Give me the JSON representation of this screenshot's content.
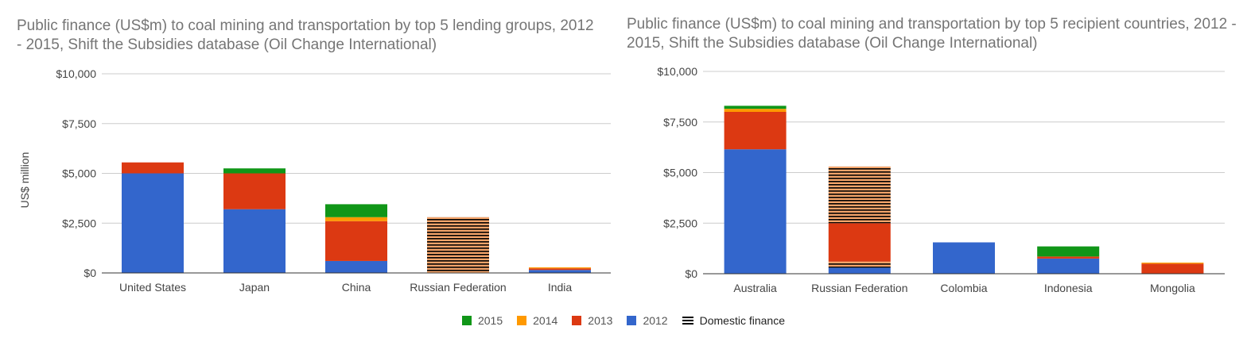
{
  "colors": {
    "2015": "#109618",
    "2014": "#FF9900",
    "2013": "#DC3912",
    "2012": "#3366CC",
    "domestic_fill": "#F4A46A",
    "domestic_hatch": "#000000",
    "gridline": "#CCCCCC",
    "axis": "#333333",
    "text": "#444444"
  },
  "legend": {
    "items": [
      {
        "label": "2015",
        "color": "#109618"
      },
      {
        "label": "2014",
        "color": "#FF9900"
      },
      {
        "label": "2013",
        "color": "#DC3912"
      },
      {
        "label": "2012",
        "color": "#3366CC"
      }
    ],
    "domestic_label": "Domestic finance"
  },
  "chart_data": [
    {
      "type": "bar",
      "stacked": true,
      "title": "Public finance (US$m) to coal mining and transportation by top 5 lending groups, 2012 - 2015, Shift the Subsidies database (Oil Change International)",
      "xlabel": "",
      "ylabel": "US$ million",
      "ylim": [
        0,
        10000
      ],
      "yticks": [
        0,
        2500,
        5000,
        7500,
        10000
      ],
      "ytick_labels": [
        "$0",
        "$2,500",
        "$5,000",
        "$7,500",
        "$10,000"
      ],
      "grid": true,
      "categories": [
        "United States",
        "Japan",
        "China",
        "Russian Federation",
        "India"
      ],
      "series": [
        {
          "name": "2012",
          "values": [
            5000,
            3200,
            600,
            0,
            150
          ]
        },
        {
          "name": "2013",
          "values": [
            550,
            1800,
            2000,
            0,
            80
          ]
        },
        {
          "name": "2014",
          "values": [
            0,
            0,
            200,
            0,
            50
          ]
        },
        {
          "name": "2015",
          "values": [
            0,
            250,
            650,
            0,
            0
          ]
        },
        {
          "name": "Domestic finance",
          "values": [
            0,
            0,
            0,
            2800,
            0
          ]
        }
      ]
    },
    {
      "type": "bar",
      "stacked": true,
      "title": "Public finance (US$m) to coal mining and transportation by top 5 recipient countries, 2012 - 2015, Shift the Subsidies database (Oil Change International)",
      "xlabel": "",
      "ylabel": "",
      "ylim": [
        0,
        10000
      ],
      "yticks": [
        0,
        2500,
        5000,
        7500,
        10000
      ],
      "ytick_labels": [
        "$0",
        "$2,500",
        "$5,000",
        "$7,500",
        "$10,000"
      ],
      "grid": true,
      "categories": [
        "Australia",
        "Russian Federation",
        "Colombia",
        "Indonesia",
        "Mongolia"
      ],
      "series": [
        {
          "name": "2012",
          "values": [
            6150,
            300,
            1550,
            750,
            0
          ]
        },
        {
          "name": "Domestic finance",
          "values": [
            0,
            300,
            0,
            0,
            0
          ]
        },
        {
          "name": "2013",
          "values": [
            1850,
            1900,
            0,
            100,
            500
          ]
        },
        {
          "name": "2014",
          "values": [
            150,
            0,
            0,
            0,
            50
          ]
        },
        {
          "name": "2015",
          "values": [
            150,
            0,
            0,
            500,
            0
          ]
        },
        {
          "name": "Domestic finance",
          "values": [
            0,
            2800,
            0,
            0,
            0
          ]
        }
      ]
    }
  ]
}
